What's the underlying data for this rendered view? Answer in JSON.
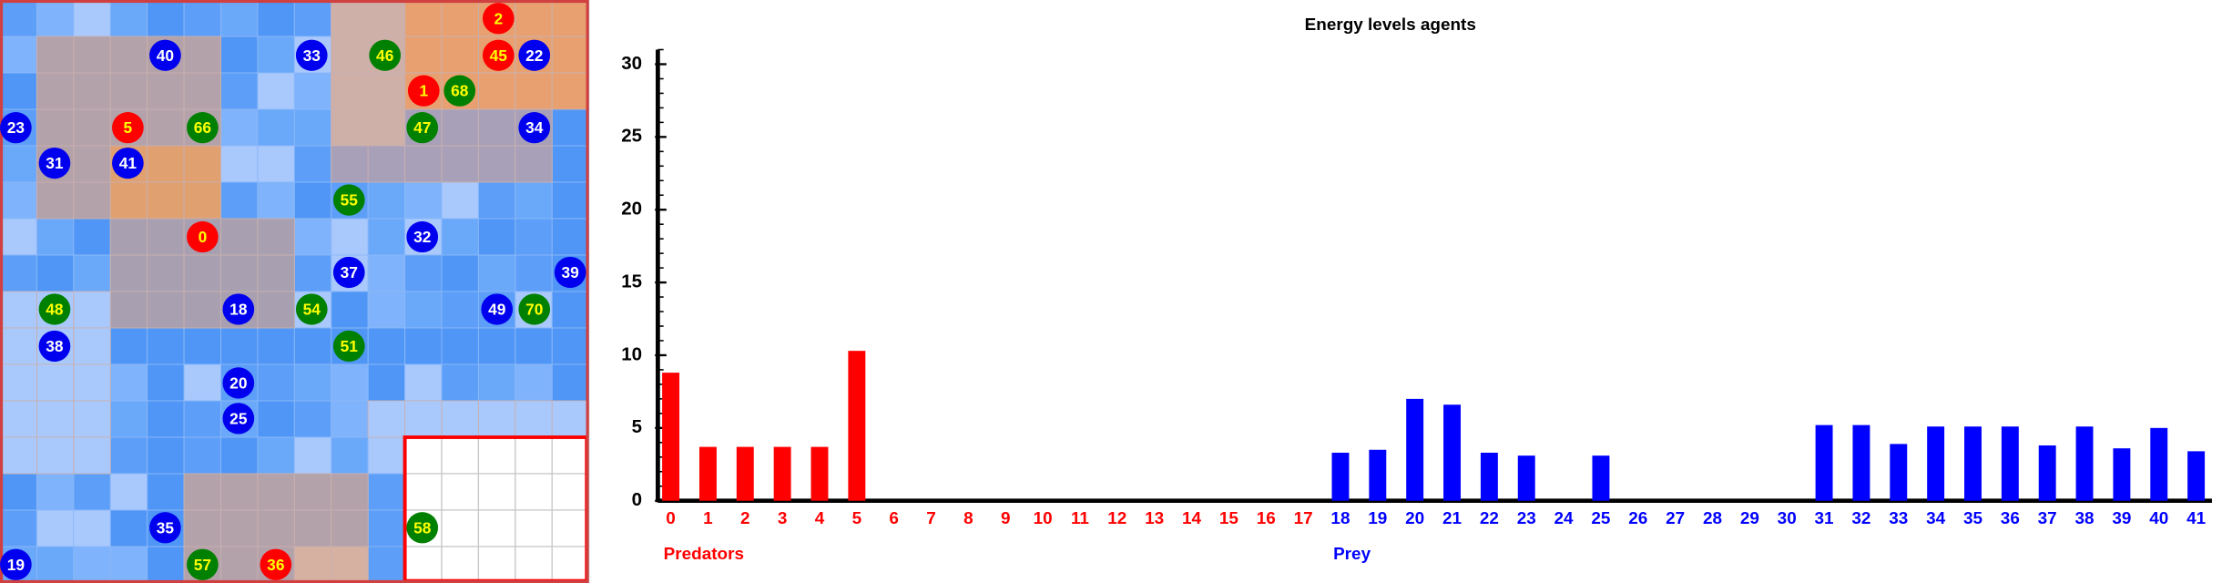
{
  "grid": {
    "agents": [
      {
        "label": "2",
        "color": "#ff0000"
      },
      {
        "label": "40",
        "color": "#0000ee"
      },
      {
        "label": "33",
        "color": "#0000ee"
      },
      {
        "label": "46",
        "color": "#008000"
      },
      {
        "label": "45",
        "color": "#ff0000"
      },
      {
        "label": "22",
        "color": "#0000ee"
      },
      {
        "label": "1",
        "color": "#ff0000"
      },
      {
        "label": "68",
        "color": "#008000"
      },
      {
        "label": "23",
        "color": "#0000ee"
      },
      {
        "label": "5",
        "color": "#ff0000"
      },
      {
        "label": "66",
        "color": "#008000"
      },
      {
        "label": "47",
        "color": "#008000"
      },
      {
        "label": "34",
        "color": "#0000ee"
      },
      {
        "label": "31",
        "color": "#0000ee"
      },
      {
        "label": "41",
        "color": "#0000ee"
      },
      {
        "label": "55",
        "color": "#008000"
      },
      {
        "label": "0",
        "color": "#ff0000"
      },
      {
        "label": "32",
        "color": "#0000ee"
      },
      {
        "label": "37",
        "color": "#0000ee"
      },
      {
        "label": "39",
        "color": "#0000ee"
      },
      {
        "label": "48",
        "color": "#008000"
      },
      {
        "label": "18",
        "color": "#0000ee"
      },
      {
        "label": "54",
        "color": "#008000"
      },
      {
        "label": "49",
        "color": "#0000ee"
      },
      {
        "label": "70",
        "color": "#008000"
      },
      {
        "label": "38",
        "color": "#0000ee"
      },
      {
        "label": "51",
        "color": "#008000"
      },
      {
        "label": "20",
        "color": "#0000ee"
      },
      {
        "label": "25",
        "color": "#0000ee"
      },
      {
        "label": "35",
        "color": "#0000ee"
      },
      {
        "label": "58",
        "color": "#008000"
      },
      {
        "label": "19",
        "color": "#0000ee"
      },
      {
        "label": "57",
        "color": "#008000"
      },
      {
        "label": "36",
        "color": "#ff0000"
      }
    ]
  },
  "chart_data": {
    "type": "bar",
    "title": "Energy levels agents",
    "categories": [
      "0",
      "1",
      "2",
      "3",
      "4",
      "5",
      "6",
      "7",
      "8",
      "9",
      "10",
      "11",
      "12",
      "13",
      "14",
      "15",
      "16",
      "17",
      "18",
      "19",
      "20",
      "21",
      "22",
      "23",
      "24",
      "25",
      "26",
      "27",
      "28",
      "29",
      "30",
      "31",
      "32",
      "33",
      "34",
      "35",
      "36",
      "37",
      "38",
      "39",
      "40",
      "41"
    ],
    "series": [
      {
        "name": "Predators",
        "color": "#ff0000",
        "values": [
          8.8,
          3.7,
          3.7,
          3.7,
          3.7,
          10.3,
          0,
          0,
          0,
          0,
          0,
          0,
          0,
          0,
          0,
          0,
          0,
          0,
          null,
          null,
          null,
          null,
          null,
          null,
          null,
          null,
          null,
          null,
          null,
          null,
          null,
          null,
          null,
          null,
          null,
          null,
          null,
          null,
          null,
          null,
          null,
          null
        ]
      },
      {
        "name": "Prey",
        "color": "#0000ff",
        "values": [
          null,
          null,
          null,
          null,
          null,
          null,
          null,
          null,
          null,
          null,
          null,
          null,
          null,
          null,
          null,
          null,
          null,
          null,
          3.3,
          3.5,
          7.0,
          6.6,
          3.3,
          3.1,
          0,
          3.1,
          0,
          0,
          0,
          0,
          0,
          5.2,
          5.2,
          3.9,
          5.1,
          5.1,
          5.1,
          3.8,
          5.1,
          3.6,
          5.0,
          3.4
        ]
      }
    ],
    "ylim": [
      0,
      31
    ],
    "yticks": [
      0,
      5,
      10,
      15,
      20,
      25,
      30
    ]
  }
}
